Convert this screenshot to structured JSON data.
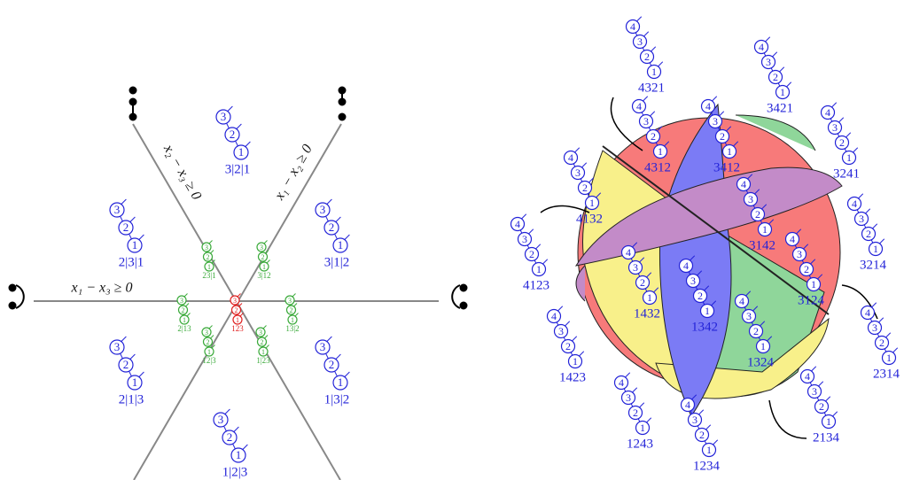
{
  "left": {
    "axis_labels": [
      "x₂ − x₃ ≥ 0",
      "x₁ − x₂ ≥ 0",
      "x₁ − x₃ ≥ 0"
    ],
    "regions": [
      {
        "label": "3|2|1",
        "nodes": [
          "3",
          "2",
          "1"
        ]
      },
      {
        "label": "2|3|1",
        "nodes": [
          "3",
          "2",
          "1"
        ]
      },
      {
        "label": "3|1|2",
        "nodes": [
          "3",
          "2",
          "1"
        ]
      },
      {
        "label": "2|1|3",
        "nodes": [
          "3",
          "2",
          "1"
        ]
      },
      {
        "label": "1|3|2",
        "nodes": [
          "3",
          "2",
          "1"
        ]
      },
      {
        "label": "1|2|3",
        "nodes": [
          "3",
          "2",
          "1"
        ]
      }
    ],
    "faces": [
      {
        "label": "23|1",
        "nodes": [
          "3",
          "2",
          "1"
        ]
      },
      {
        "label": "3|12",
        "nodes": [
          "3",
          "2",
          "1"
        ]
      },
      {
        "label": "2|13",
        "nodes": [
          "3",
          "2",
          "1"
        ]
      },
      {
        "label": "13|2",
        "nodes": [
          "3",
          "2",
          "1"
        ]
      },
      {
        "label": "12|3",
        "nodes": [
          "3",
          "2",
          "1"
        ]
      },
      {
        "label": "1|23",
        "nodes": [
          "3",
          "2",
          "1"
        ]
      },
      {
        "label": "123",
        "nodes": [
          "3",
          "2",
          "1"
        ]
      }
    ]
  },
  "right": {
    "vertices": [
      {
        "label": "4321",
        "nodes": [
          "4",
          "3",
          "2",
          "1"
        ]
      },
      {
        "label": "3421",
        "nodes": [
          "4",
          "3",
          "2",
          "1"
        ]
      },
      {
        "label": "3241",
        "nodes": [
          "4",
          "3",
          "2",
          "1"
        ]
      },
      {
        "label": "3214",
        "nodes": [
          "4",
          "3",
          "2",
          "1"
        ]
      },
      {
        "label": "2314",
        "nodes": [
          "4",
          "3",
          "2",
          "1"
        ]
      },
      {
        "label": "2134",
        "nodes": [
          "4",
          "3",
          "2",
          "1"
        ]
      },
      {
        "label": "1234",
        "nodes": [
          "4",
          "3",
          "2",
          "1"
        ]
      },
      {
        "label": "1243",
        "nodes": [
          "4",
          "3",
          "2",
          "1"
        ]
      },
      {
        "label": "1423",
        "nodes": [
          "4",
          "3",
          "2",
          "1"
        ]
      },
      {
        "label": "4123",
        "nodes": [
          "4",
          "3",
          "2",
          "1"
        ]
      },
      {
        "label": "4132",
        "nodes": [
          "4",
          "3",
          "2",
          "1"
        ]
      },
      {
        "label": "4312",
        "nodes": [
          "4",
          "3",
          "2",
          "1"
        ]
      },
      {
        "label": "3412",
        "nodes": [
          "4",
          "3",
          "2",
          "1"
        ]
      },
      {
        "label": "3142",
        "nodes": [
          "4",
          "3",
          "2",
          "1"
        ]
      },
      {
        "label": "3124",
        "nodes": [
          "4",
          "3",
          "2",
          "1"
        ]
      },
      {
        "label": "1324",
        "nodes": [
          "4",
          "3",
          "2",
          "1"
        ]
      },
      {
        "label": "1342",
        "nodes": [
          "4",
          "3",
          "2",
          "1"
        ]
      },
      {
        "label": "1432",
        "nodes": [
          "4",
          "3",
          "2",
          "1"
        ]
      }
    ]
  }
}
